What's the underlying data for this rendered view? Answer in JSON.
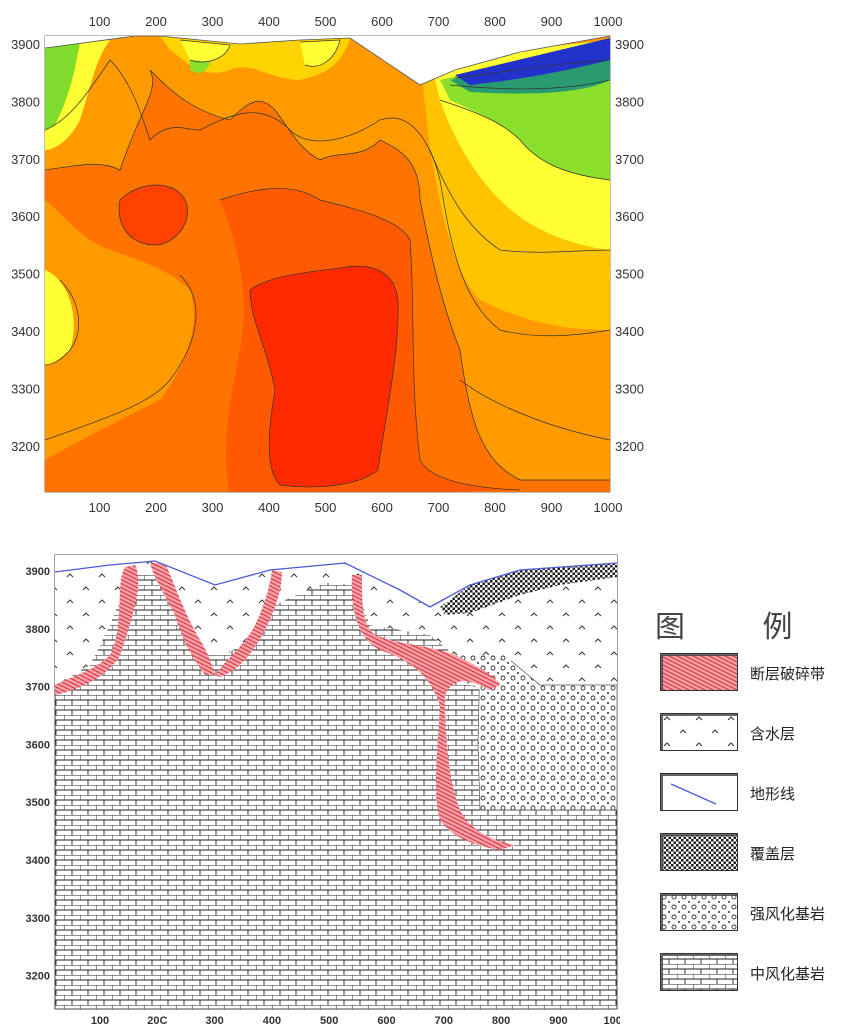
{
  "top_chart": {
    "x_ticks": [
      "100",
      "200",
      "300",
      "400",
      "500",
      "600",
      "700",
      "800",
      "900",
      "1000"
    ],
    "y_ticks": [
      "3900",
      "3800",
      "3700",
      "3600",
      "3500",
      "3400",
      "3300",
      "3200"
    ],
    "colors": {
      "low": "#2233cc",
      "mid_low": "#66dd22",
      "mid": "#ffff33",
      "mid_high": "#ffb300",
      "high": "#ff6a00",
      "peak": "#ff2a00"
    }
  },
  "bottom_chart": {
    "x_ticks": [
      "100",
      "20C",
      "300",
      "400",
      "500",
      "600",
      "700",
      "800",
      "900",
      "1000"
    ],
    "y_ticks": [
      "3900",
      "3800",
      "3700",
      "3600",
      "3500",
      "3400",
      "3300",
      "3200"
    ]
  },
  "legend": {
    "title": "图  例",
    "items": [
      {
        "key": "fault",
        "label": "断层破碎带"
      },
      {
        "key": "aquifer",
        "label": "含水层"
      },
      {
        "key": "terrain",
        "label": "地形线"
      },
      {
        "key": "cover",
        "label": "覆盖层"
      },
      {
        "key": "strong",
        "label": "强风化基岩"
      },
      {
        "key": "medium",
        "label": "中风化基岩"
      }
    ]
  }
}
